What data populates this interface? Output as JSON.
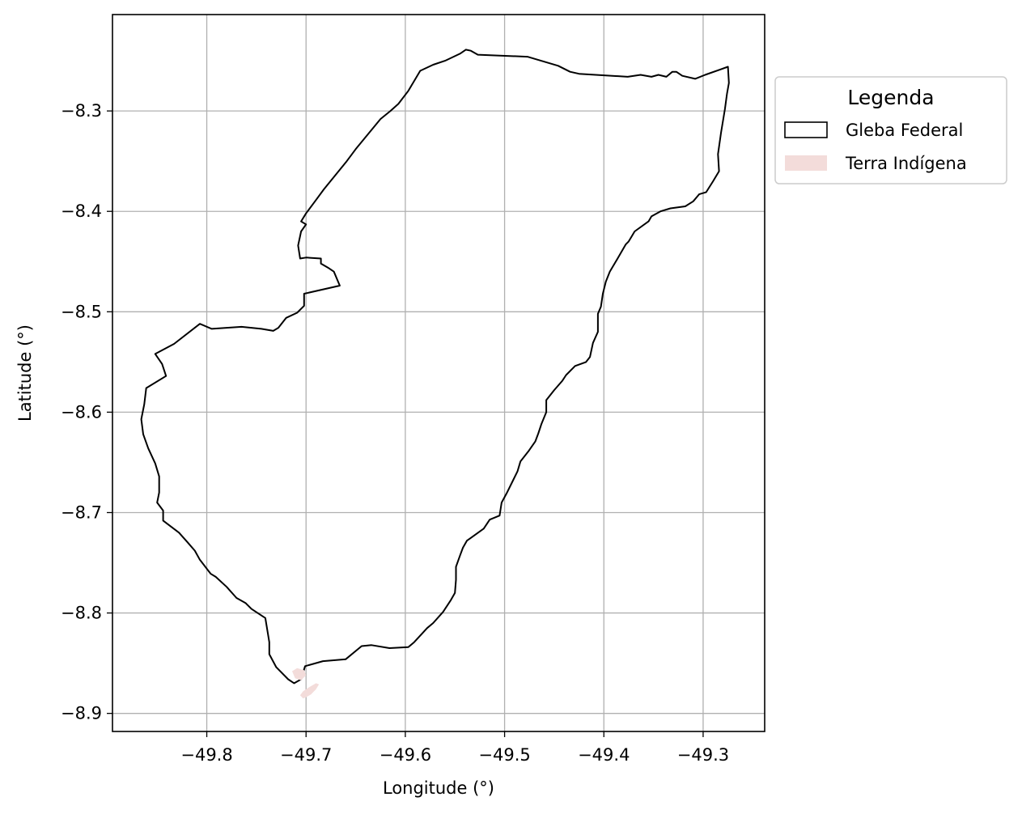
{
  "chart_data": {
    "type": "map",
    "xlabel": "Longitude (°)",
    "ylabel": "Latitude (°)",
    "xlim": [
      -49.895,
      -49.238
    ],
    "ylim": [
      -8.918,
      -8.204
    ],
    "xticks": [
      -49.8,
      -49.7,
      -49.6,
      -49.5,
      -49.4,
      -49.3
    ],
    "yticks": [
      -8.3,
      -8.4,
      -8.5,
      -8.6,
      -8.7,
      -8.8,
      -8.9
    ],
    "xtick_labels": [
      "−49.8",
      "−49.7",
      "−49.6",
      "−49.5",
      "−49.4",
      "−49.3"
    ],
    "ytick_labels": [
      "−8.3",
      "−8.4",
      "−8.5",
      "−8.6",
      "−8.7",
      "−8.8",
      "−8.9"
    ],
    "grid": true,
    "legend": {
      "title": "Legenda",
      "placement": "outside-upper-right",
      "entries": [
        {
          "label": "Gleba Federal",
          "style": "outline",
          "edge_color": "#000000",
          "fill_color": "none"
        },
        {
          "label": "Terra Indígena",
          "style": "filled",
          "edge_color": "none",
          "fill_color": "#f3dcda"
        }
      ]
    },
    "series": [
      {
        "name": "Gleba Federal",
        "kind": "polygon-outline",
        "color": "#000000",
        "coordinates": [
          [
            -49.545,
            -8.243
          ],
          [
            -49.539,
            -8.239
          ],
          [
            -49.534,
            -8.24
          ],
          [
            -49.527,
            -8.244
          ],
          [
            -49.477,
            -8.246
          ],
          [
            -49.446,
            -8.255
          ],
          [
            -49.434,
            -8.261
          ],
          [
            -49.425,
            -8.263
          ],
          [
            -49.376,
            -8.266
          ],
          [
            -49.363,
            -8.264
          ],
          [
            -49.352,
            -8.266
          ],
          [
            -49.345,
            -8.264
          ],
          [
            -49.337,
            -8.266
          ],
          [
            -49.331,
            -8.261
          ],
          [
            -49.327,
            -8.261
          ],
          [
            -49.321,
            -8.265
          ],
          [
            -49.308,
            -8.268
          ],
          [
            -49.298,
            -8.264
          ],
          [
            -49.275,
            -8.256
          ],
          [
            -49.274,
            -8.272
          ],
          [
            -49.276,
            -8.283
          ],
          [
            -49.278,
            -8.298
          ],
          [
            -49.282,
            -8.322
          ],
          [
            -49.285,
            -8.343
          ],
          [
            -49.284,
            -8.36
          ],
          [
            -49.29,
            -8.37
          ],
          [
            -49.297,
            -8.381
          ],
          [
            -49.304,
            -8.383
          ],
          [
            -49.31,
            -8.39
          ],
          [
            -49.318,
            -8.395
          ],
          [
            -49.333,
            -8.397
          ],
          [
            -49.343,
            -8.4
          ],
          [
            -49.352,
            -8.405
          ],
          [
            -49.355,
            -8.41
          ],
          [
            -49.369,
            -8.42
          ],
          [
            -49.372,
            -8.425
          ],
          [
            -49.375,
            -8.43
          ],
          [
            -49.378,
            -8.433
          ],
          [
            -49.388,
            -8.45
          ],
          [
            -49.394,
            -8.46
          ],
          [
            -49.398,
            -8.47
          ],
          [
            -49.401,
            -8.482
          ],
          [
            -49.403,
            -8.495
          ],
          [
            -49.406,
            -8.502
          ],
          [
            -49.406,
            -8.52
          ],
          [
            -49.411,
            -8.531
          ],
          [
            -49.414,
            -8.545
          ],
          [
            -49.418,
            -8.55
          ],
          [
            -49.429,
            -8.554
          ],
          [
            -49.438,
            -8.563
          ],
          [
            -49.442,
            -8.569
          ],
          [
            -49.45,
            -8.578
          ],
          [
            -49.458,
            -8.588
          ],
          [
            -49.458,
            -8.6
          ],
          [
            -49.463,
            -8.612
          ],
          [
            -49.466,
            -8.621
          ],
          [
            -49.469,
            -8.629
          ],
          [
            -49.476,
            -8.639
          ],
          [
            -49.484,
            -8.649
          ],
          [
            -49.487,
            -8.659
          ],
          [
            -49.491,
            -8.667
          ],
          [
            -49.498,
            -8.681
          ],
          [
            -49.503,
            -8.69
          ],
          [
            -49.505,
            -8.703
          ],
          [
            -49.515,
            -8.707
          ],
          [
            -49.521,
            -8.716
          ],
          [
            -49.535,
            -8.726
          ],
          [
            -49.538,
            -8.728
          ],
          [
            -49.542,
            -8.735
          ],
          [
            -49.545,
            -8.743
          ],
          [
            -49.549,
            -8.754
          ],
          [
            -49.549,
            -8.767
          ],
          [
            -49.55,
            -8.78
          ],
          [
            -49.554,
            -8.787
          ],
          [
            -49.562,
            -8.799
          ],
          [
            -49.572,
            -8.81
          ],
          [
            -49.578,
            -8.815
          ],
          [
            -49.591,
            -8.829
          ],
          [
            -49.597,
            -8.834
          ],
          [
            -49.616,
            -8.835
          ],
          [
            -49.634,
            -8.832
          ],
          [
            -49.644,
            -8.833
          ],
          [
            -49.66,
            -8.846
          ],
          [
            -49.683,
            -8.848
          ],
          [
            -49.701,
            -8.853
          ],
          [
            -49.705,
            -8.866
          ],
          [
            -49.712,
            -8.87
          ],
          [
            -49.718,
            -8.866
          ],
          [
            -49.73,
            -8.854
          ],
          [
            -49.737,
            -8.841
          ],
          [
            -49.737,
            -8.829
          ],
          [
            -49.741,
            -8.805
          ],
          [
            -49.755,
            -8.796
          ],
          [
            -49.761,
            -8.79
          ],
          [
            -49.77,
            -8.785
          ],
          [
            -49.78,
            -8.774
          ],
          [
            -49.791,
            -8.764
          ],
          [
            -49.796,
            -8.761
          ],
          [
            -49.807,
            -8.747
          ],
          [
            -49.812,
            -8.738
          ],
          [
            -49.819,
            -8.73
          ],
          [
            -49.828,
            -8.72
          ],
          [
            -49.844,
            -8.708
          ],
          [
            -49.844,
            -8.698
          ],
          [
            -49.85,
            -8.69
          ],
          [
            -49.848,
            -8.68
          ],
          [
            -49.848,
            -8.664
          ],
          [
            -49.852,
            -8.651
          ],
          [
            -49.859,
            -8.636
          ],
          [
            -49.864,
            -8.622
          ],
          [
            -49.866,
            -8.607
          ],
          [
            -49.863,
            -8.592
          ],
          [
            -49.861,
            -8.576
          ],
          [
            -49.841,
            -8.564
          ],
          [
            -49.845,
            -8.552
          ],
          [
            -49.852,
            -8.542
          ],
          [
            -49.833,
            -8.532
          ],
          [
            -49.807,
            -8.512
          ],
          [
            -49.795,
            -8.517
          ],
          [
            -49.765,
            -8.515
          ],
          [
            -49.745,
            -8.517
          ],
          [
            -49.733,
            -8.519
          ],
          [
            -49.728,
            -8.516
          ],
          [
            -49.72,
            -8.506
          ],
          [
            -49.709,
            -8.501
          ],
          [
            -49.702,
            -8.494
          ],
          [
            -49.702,
            -8.482
          ],
          [
            -49.666,
            -8.474
          ],
          [
            -49.672,
            -8.46
          ],
          [
            -49.678,
            -8.456
          ],
          [
            -49.685,
            -8.452
          ],
          [
            -49.685,
            -8.447
          ],
          [
            -49.7,
            -8.446
          ],
          [
            -49.706,
            -8.447
          ],
          [
            -49.708,
            -8.434
          ],
          [
            -49.705,
            -8.42
          ],
          [
            -49.7,
            -8.413
          ],
          [
            -49.705,
            -8.41
          ],
          [
            -49.7,
            -8.402
          ],
          [
            -49.691,
            -8.39
          ],
          [
            -49.682,
            -8.378
          ],
          [
            -49.659,
            -8.35
          ],
          [
            -49.65,
            -8.338
          ],
          [
            -49.625,
            -8.308
          ],
          [
            -49.615,
            -8.3
          ],
          [
            -49.607,
            -8.293
          ],
          [
            -49.597,
            -8.28
          ],
          [
            -49.585,
            -8.26
          ],
          [
            -49.572,
            -8.254
          ],
          [
            -49.56,
            -8.25
          ],
          [
            -49.545,
            -8.243
          ]
        ]
      },
      {
        "name": "Terra Indígena",
        "kind": "polygon-filled",
        "color": "#f3dcda",
        "coordinates": [
          [
            [
              -49.711,
              -8.865
            ],
            [
              -49.714,
              -8.858
            ],
            [
              -49.709,
              -8.855
            ],
            [
              -49.702,
              -8.857
            ],
            [
              -49.7,
              -8.862
            ],
            [
              -49.705,
              -8.867
            ],
            [
              -49.711,
              -8.865
            ]
          ],
          [
            [
              -49.7,
              -8.884
            ],
            [
              -49.695,
              -8.881
            ],
            [
              -49.69,
              -8.876
            ],
            [
              -49.687,
              -8.871
            ],
            [
              -49.69,
              -8.87
            ],
            [
              -49.697,
              -8.874
            ],
            [
              -49.703,
              -8.878
            ],
            [
              -49.706,
              -8.882
            ],
            [
              -49.703,
              -8.885
            ],
            [
              -49.7,
              -8.884
            ]
          ]
        ]
      }
    ]
  }
}
